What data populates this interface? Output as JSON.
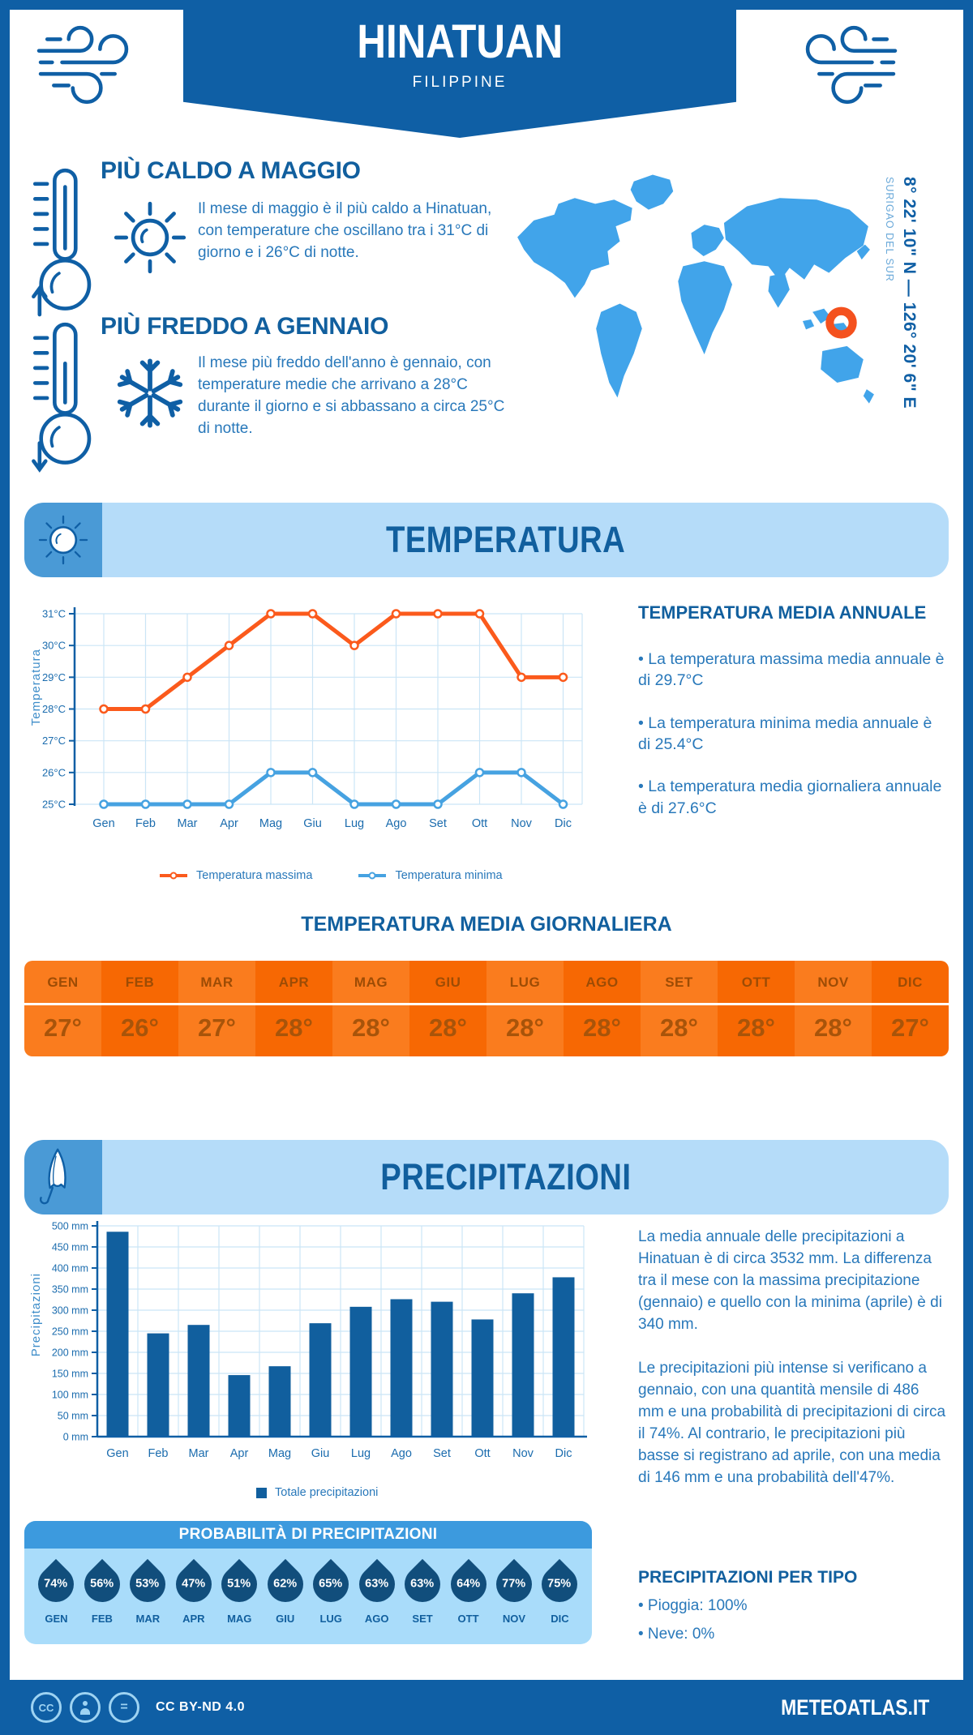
{
  "header": {
    "title": "HINATUAN",
    "subtitle": "FILIPPINE"
  },
  "location": {
    "coords": "8° 22' 10\" N — 126° 20' 6\" E",
    "region": "SURIGAO DEL SUR"
  },
  "highlights": {
    "warm": {
      "title": "PIÙ CALDO A MAGGIO",
      "text": "Il mese di maggio è il più caldo a Hinatuan, con temperature che oscillano tra i 31°C di giorno e i 26°C di notte."
    },
    "cold": {
      "title": "PIÙ FREDDO A GENNAIO",
      "text": "Il mese più freddo dell'anno è gennaio, con temperature medie che arrivano a 28°C durante il giorno e si abbassano a circa 25°C di notte."
    }
  },
  "temperature_section": {
    "title": "TEMPERATURA",
    "ylabel": "Temperatura",
    "legend_max": "Temperatura massima",
    "legend_min": "Temperatura minima",
    "annual": {
      "heading": "TEMPERATURA MEDIA ANNUALE",
      "bullets": [
        "• La temperatura massima media annuale è di 29.7°C",
        "• La temperatura minima media annuale è di 25.4°C",
        "• La temperatura media giornaliera annuale è di 27.6°C"
      ]
    },
    "daily": {
      "heading": "TEMPERATURA MEDIA GIORNALIERA"
    }
  },
  "precipitation_section": {
    "title": "PRECIPITAZIONI",
    "ylabel": "Precipitazioni",
    "legend": "Totale precipitazioni",
    "paragraphs": [
      "La media annuale delle precipitazioni a Hinatuan è di circa 3532 mm. La differenza tra il mese con la massima precipitazione (gennaio) e quello con la minima (aprile) è di 340 mm.",
      "Le precipitazioni più intense si verificano a gennaio, con una quantità mensile di 486 mm e una probabilità di precipitazioni di circa il 74%. Al contrario, le precipitazioni più basse si registrano ad aprile, con una media di 146 mm e una probabilità dell'47%."
    ],
    "probability": {
      "heading": "PROBABILITÀ DI PRECIPITAZIONI"
    },
    "by_type": {
      "heading": "PRECIPITAZIONI PER TIPO",
      "bullets": [
        "• Pioggia: 100%",
        "• Neve: 0%"
      ]
    }
  },
  "footer": {
    "license": "CC BY-ND 4.0",
    "brand": "METEOATLAS.IT",
    "icons": {
      "cc": "CC",
      "nd": "="
    }
  },
  "colors": {
    "dark_blue": "#0f5fa5",
    "heading_blue": "#115f9e",
    "body_blue": "#2878ba",
    "light_banner": "#b5dcf9",
    "banner_square": "#4a9ad6",
    "map_blue": "#41a4ea",
    "marker_orange": "#f4511e",
    "line_max": "#fb5a1c",
    "line_min": "#46a2e1",
    "bar_blue": "#115f9e",
    "table_orange_a": "#fa7c1e",
    "table_orange_b": "#f76803",
    "droplet": "#114e7c",
    "prob_header": "#3c9ade",
    "grid": "#cbe5f6"
  },
  "chart_data": [
    {
      "type": "line",
      "title": "Temperatura massima e minima mensile",
      "categories": [
        "Gen",
        "Feb",
        "Mar",
        "Apr",
        "Mag",
        "Giu",
        "Lug",
        "Ago",
        "Set",
        "Ott",
        "Nov",
        "Dic"
      ],
      "series": [
        {
          "name": "Temperatura massima",
          "color": "#fb5a1c",
          "values": [
            28,
            28,
            29,
            30,
            31,
            31,
            30,
            31,
            31,
            31,
            29,
            29
          ]
        },
        {
          "name": "Temperatura minima",
          "color": "#46a2e1",
          "values": [
            25,
            25,
            25,
            25,
            26,
            26,
            25,
            25,
            25,
            26,
            26,
            25
          ]
        }
      ],
      "xlabel": "",
      "ylabel": "Temperatura",
      "ylim": [
        25,
        31
      ],
      "ytick_step": 1,
      "ytick_suffix": "°C",
      "grid": true,
      "legend_position": "bottom"
    },
    {
      "type": "bar",
      "title": "Totale precipitazioni mensili",
      "categories": [
        "Gen",
        "Feb",
        "Mar",
        "Apr",
        "Mag",
        "Giu",
        "Lug",
        "Ago",
        "Set",
        "Ott",
        "Nov",
        "Dic"
      ],
      "values": [
        486,
        245,
        265,
        146,
        167,
        269,
        308,
        326,
        320,
        278,
        340,
        378
      ],
      "series_name": "Totale precipitazioni",
      "xlabel": "",
      "ylabel": "Precipitazioni",
      "ylim": [
        0,
        500
      ],
      "ytick_step": 50,
      "ytick_suffix": " mm",
      "color": "#115f9e",
      "grid": true,
      "legend_position": "bottom"
    },
    {
      "type": "table",
      "title": "TEMPERATURA MEDIA GIORNALIERA",
      "categories": [
        "GEN",
        "FEB",
        "MAR",
        "APR",
        "MAG",
        "GIU",
        "LUG",
        "AGO",
        "SET",
        "OTT",
        "NOV",
        "DIC"
      ],
      "values": [
        "27°",
        "26°",
        "27°",
        "28°",
        "28°",
        "28°",
        "28°",
        "28°",
        "28°",
        "28°",
        "28°",
        "27°"
      ]
    },
    {
      "type": "table",
      "title": "PROBABILITÀ DI PRECIPITAZIONI",
      "categories": [
        "GEN",
        "FEB",
        "MAR",
        "APR",
        "MAG",
        "GIU",
        "LUG",
        "AGO",
        "SET",
        "OTT",
        "NOV",
        "DIC"
      ],
      "values": [
        "74%",
        "56%",
        "53%",
        "47%",
        "51%",
        "62%",
        "65%",
        "63%",
        "63%",
        "64%",
        "77%",
        "75%"
      ]
    }
  ]
}
